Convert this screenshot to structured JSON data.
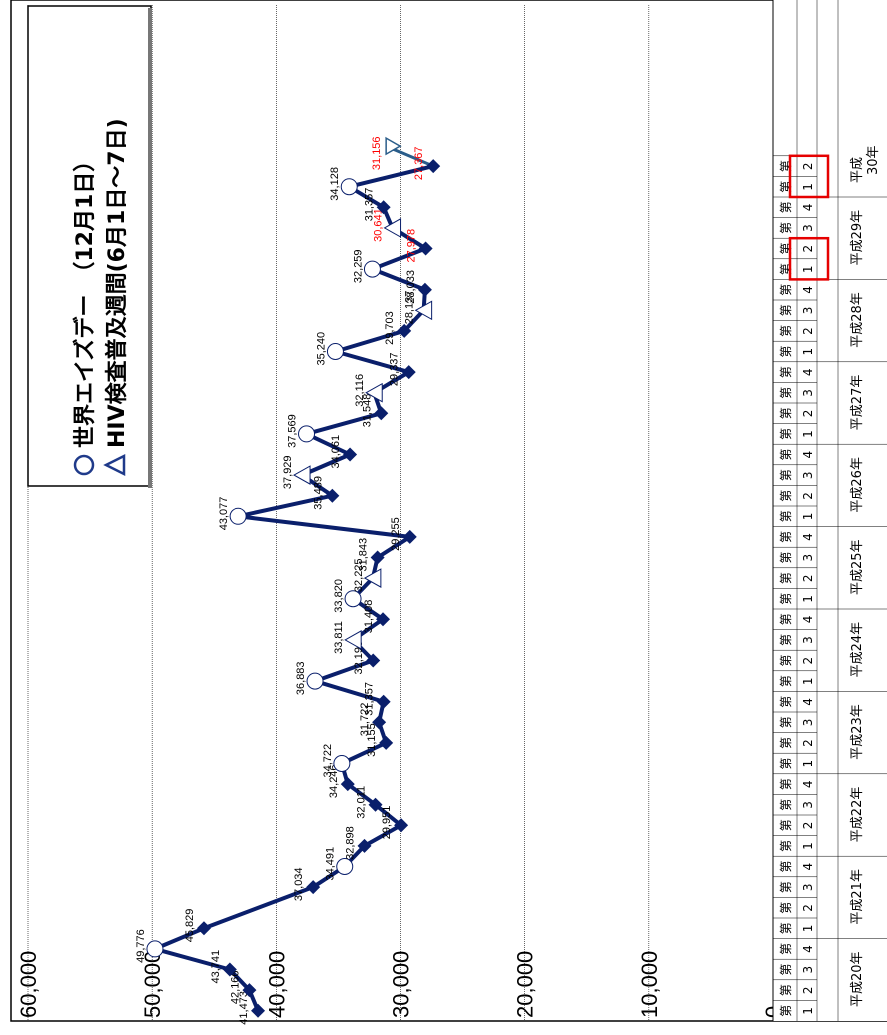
{
  "chart_data": {
    "type": "line",
    "ylim": [
      0,
      60000
    ],
    "yticks": [
      "0",
      "10,000",
      "20,000",
      "30,000",
      "40,000",
      "50,000",
      "60,000"
    ],
    "categories": [
      {
        "ki": "第",
        "q": "1"
      },
      {
        "ki": "第",
        "q": "2"
      },
      {
        "ki": "第",
        "q": "3"
      },
      {
        "ki": "第",
        "q": "4"
      },
      {
        "ki": "第",
        "q": "1"
      },
      {
        "ki": "第",
        "q": "2"
      },
      {
        "ki": "第",
        "q": "3"
      },
      {
        "ki": "第",
        "q": "4"
      },
      {
        "ki": "第",
        "q": "1"
      },
      {
        "ki": "第",
        "q": "2"
      },
      {
        "ki": "第",
        "q": "3"
      },
      {
        "ki": "第",
        "q": "4"
      },
      {
        "ki": "第",
        "q": "1"
      },
      {
        "ki": "第",
        "q": "2"
      },
      {
        "ki": "第",
        "q": "3"
      },
      {
        "ki": "第",
        "q": "4"
      },
      {
        "ki": "第",
        "q": "1"
      },
      {
        "ki": "第",
        "q": "2"
      },
      {
        "ki": "第",
        "q": "3"
      },
      {
        "ki": "第",
        "q": "4"
      },
      {
        "ki": "第",
        "q": "1"
      },
      {
        "ki": "第",
        "q": "2"
      },
      {
        "ki": "第",
        "q": "3"
      },
      {
        "ki": "第",
        "q": "4"
      },
      {
        "ki": "第",
        "q": "1"
      },
      {
        "ki": "第",
        "q": "2"
      },
      {
        "ki": "第",
        "q": "3"
      },
      {
        "ki": "第",
        "q": "4"
      },
      {
        "ki": "第",
        "q": "1"
      },
      {
        "ki": "第",
        "q": "2"
      },
      {
        "ki": "第",
        "q": "3"
      },
      {
        "ki": "第",
        "q": "4"
      },
      {
        "ki": "第",
        "q": "1"
      },
      {
        "ki": "第",
        "q": "2"
      },
      {
        "ki": "第",
        "q": "3"
      },
      {
        "ki": "第",
        "q": "4"
      },
      {
        "ki": "第",
        "q": "1"
      },
      {
        "ki": "第",
        "q": "2"
      },
      {
        "ki": "第",
        "q": "3"
      },
      {
        "ki": "第",
        "q": "4"
      },
      {
        "ki": "第",
        "q": "1"
      },
      {
        "ki": "第",
        "q": "2"
      }
    ],
    "years": [
      "平成20年",
      "平成21年",
      "平成22年",
      "平成23年",
      "平成24年",
      "平成25年",
      "平成26年",
      "平成27年",
      "平成28年",
      "平成29年",
      "平成\n30年"
    ],
    "series": [
      {
        "values": [
          41473,
          42166,
          43741,
          49776,
          45829,
          null,
          37034,
          34491,
          32898,
          29951,
          32011,
          34246,
          34722,
          31155,
          31722,
          31357,
          36883,
          32196,
          33811,
          31408,
          33820,
          32225,
          31843,
          29255,
          43077,
          35489,
          37929,
          34061,
          37569,
          31548,
          32116,
          29337,
          35240,
          29703,
          28137,
          28033,
          32259,
          27978,
          30641,
          31357,
          34128,
          27367
        ],
        "labels": [
          "41,473",
          "42,166",
          "43,741",
          "49,776",
          "45,829",
          "",
          "37,034",
          "34,491",
          "32,898",
          "29,951",
          "32,011",
          "34,246",
          "34,722",
          "31,155",
          "31,722",
          "31,357",
          "36,883",
          "32,196",
          "33,811",
          "31,408",
          "33,820",
          "32,225",
          "31,843",
          "29,255",
          "43,077",
          "35,489",
          "37,929",
          "34,061",
          "37,569",
          "31,548",
          "32,116",
          "29,337",
          "35,240",
          "29,703",
          "28,137",
          "28,033",
          "32,259",
          "27,978",
          "30,641",
          "31,357",
          "34,128",
          "27,367"
        ],
        "markers": [
          "D",
          "D",
          "D",
          "O",
          "D",
          "",
          "D",
          "O",
          "D",
          "D",
          "D",
          "D",
          "O",
          "D",
          "D",
          "D",
          "O",
          "D",
          "T",
          "D",
          "O",
          "T",
          "D",
          "D",
          "O",
          "D",
          "T",
          "D",
          "O",
          "D",
          "T",
          "D",
          "O",
          "D",
          "T",
          "D",
          "O",
          "D",
          "T",
          "D",
          "O",
          "D"
        ],
        "red": [
          37,
          38,
          41
        ],
        "extra": [
          {
            "value": 31156,
            "label": "31,156",
            "marker": "T",
            "red": true
          }
        ]
      }
    ],
    "legend": {
      "circle_label": "世界エイズデー　（12月1日）",
      "triangle_label": "HIV検査普及週間(6月1日～7日)"
    },
    "highlight_boxes": [
      [
        36,
        37
      ],
      [
        40,
        41
      ]
    ]
  }
}
